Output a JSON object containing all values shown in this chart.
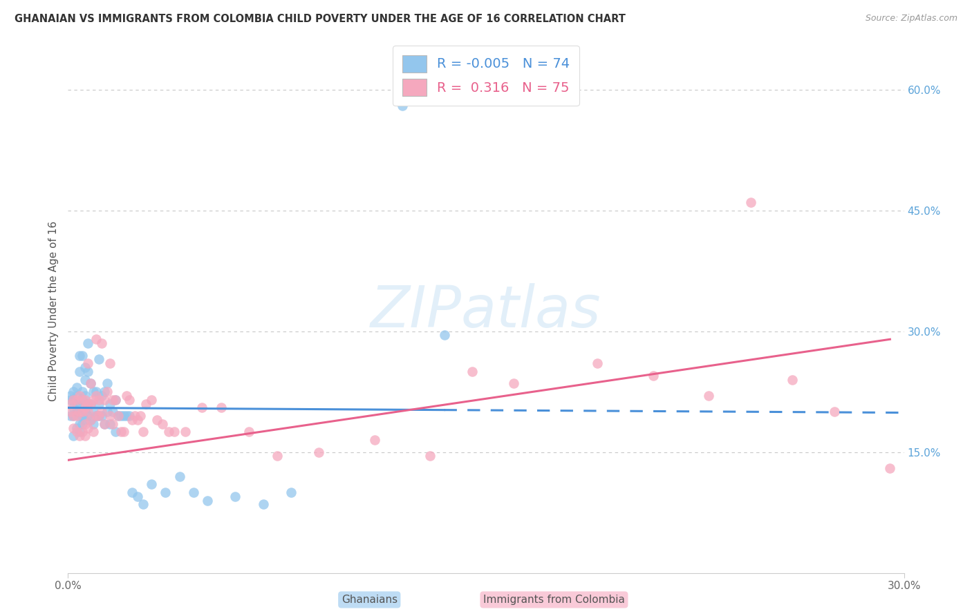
{
  "title": "GHANAIAN VS IMMIGRANTS FROM COLOMBIA CHILD POVERTY UNDER THE AGE OF 16 CORRELATION CHART",
  "source": "Source: ZipAtlas.com",
  "ylabel": "Child Poverty Under the Age of 16",
  "xlim": [
    0.0,
    0.3
  ],
  "ylim": [
    0.0,
    0.65
  ],
  "ytick_labels": [
    "15.0%",
    "30.0%",
    "45.0%",
    "60.0%"
  ],
  "ytick_values": [
    0.15,
    0.3,
    0.45,
    0.6
  ],
  "grid_color": "#c8c8c8",
  "background_color": "#ffffff",
  "watermark": "ZIPatlas",
  "series1_name": "Ghanaians",
  "series1_color": "#93c6ed",
  "series1_R": "-0.005",
  "series1_N": "74",
  "series1_line_color": "#4a90d9",
  "series2_name": "Immigrants from Colombia",
  "series2_color": "#f5a8be",
  "series2_R": "0.316",
  "series2_N": "75",
  "series2_line_color": "#e8618c",
  "gh_line_x": [
    0.0,
    0.245
  ],
  "gh_line_y": [
    0.205,
    0.2
  ],
  "co_line_x": [
    0.0,
    0.295
  ],
  "co_line_y": [
    0.14,
    0.29
  ],
  "gh_x": [
    0.001,
    0.001,
    0.001,
    0.002,
    0.002,
    0.002,
    0.002,
    0.002,
    0.003,
    0.003,
    0.003,
    0.003,
    0.003,
    0.004,
    0.004,
    0.004,
    0.004,
    0.004,
    0.004,
    0.005,
    0.005,
    0.005,
    0.005,
    0.005,
    0.005,
    0.006,
    0.006,
    0.006,
    0.006,
    0.006,
    0.007,
    0.007,
    0.007,
    0.007,
    0.008,
    0.008,
    0.008,
    0.009,
    0.009,
    0.009,
    0.01,
    0.01,
    0.011,
    0.011,
    0.011,
    0.012,
    0.012,
    0.013,
    0.013,
    0.014,
    0.014,
    0.015,
    0.015,
    0.016,
    0.017,
    0.017,
    0.018,
    0.019,
    0.02,
    0.021,
    0.022,
    0.023,
    0.025,
    0.027,
    0.03,
    0.035,
    0.04,
    0.045,
    0.05,
    0.06,
    0.07,
    0.08,
    0.12,
    0.135
  ],
  "gh_y": [
    0.195,
    0.215,
    0.22,
    0.17,
    0.195,
    0.205,
    0.215,
    0.225,
    0.18,
    0.2,
    0.21,
    0.22,
    0.23,
    0.175,
    0.185,
    0.195,
    0.21,
    0.25,
    0.27,
    0.185,
    0.195,
    0.2,
    0.215,
    0.225,
    0.27,
    0.19,
    0.2,
    0.22,
    0.24,
    0.255,
    0.195,
    0.21,
    0.25,
    0.285,
    0.19,
    0.21,
    0.235,
    0.185,
    0.2,
    0.225,
    0.195,
    0.225,
    0.195,
    0.21,
    0.265,
    0.195,
    0.22,
    0.185,
    0.225,
    0.2,
    0.235,
    0.185,
    0.21,
    0.2,
    0.175,
    0.215,
    0.195,
    0.195,
    0.195,
    0.195,
    0.195,
    0.1,
    0.095,
    0.085,
    0.11,
    0.1,
    0.12,
    0.1,
    0.09,
    0.095,
    0.085,
    0.1,
    0.58,
    0.295
  ],
  "co_x": [
    0.001,
    0.001,
    0.002,
    0.002,
    0.002,
    0.003,
    0.003,
    0.003,
    0.004,
    0.004,
    0.004,
    0.005,
    0.005,
    0.005,
    0.006,
    0.006,
    0.006,
    0.006,
    0.007,
    0.007,
    0.007,
    0.007,
    0.008,
    0.008,
    0.008,
    0.009,
    0.009,
    0.01,
    0.01,
    0.01,
    0.011,
    0.011,
    0.012,
    0.012,
    0.013,
    0.013,
    0.014,
    0.015,
    0.015,
    0.016,
    0.016,
    0.017,
    0.018,
    0.019,
    0.02,
    0.021,
    0.022,
    0.023,
    0.024,
    0.025,
    0.026,
    0.027,
    0.028,
    0.03,
    0.032,
    0.034,
    0.036,
    0.038,
    0.042,
    0.048,
    0.055,
    0.065,
    0.075,
    0.09,
    0.11,
    0.13,
    0.145,
    0.16,
    0.19,
    0.21,
    0.23,
    0.245,
    0.26,
    0.275,
    0.295
  ],
  "co_y": [
    0.2,
    0.21,
    0.18,
    0.195,
    0.215,
    0.175,
    0.195,
    0.215,
    0.17,
    0.2,
    0.22,
    0.175,
    0.2,
    0.215,
    0.17,
    0.185,
    0.205,
    0.215,
    0.18,
    0.2,
    0.21,
    0.26,
    0.19,
    0.21,
    0.235,
    0.175,
    0.215,
    0.195,
    0.22,
    0.29,
    0.195,
    0.215,
    0.2,
    0.285,
    0.185,
    0.215,
    0.225,
    0.195,
    0.26,
    0.185,
    0.215,
    0.215,
    0.195,
    0.175,
    0.175,
    0.22,
    0.215,
    0.19,
    0.195,
    0.19,
    0.195,
    0.175,
    0.21,
    0.215,
    0.19,
    0.185,
    0.175,
    0.175,
    0.175,
    0.205,
    0.205,
    0.175,
    0.145,
    0.15,
    0.165,
    0.145,
    0.25,
    0.235,
    0.26,
    0.245,
    0.22,
    0.46,
    0.24,
    0.2,
    0.13
  ]
}
